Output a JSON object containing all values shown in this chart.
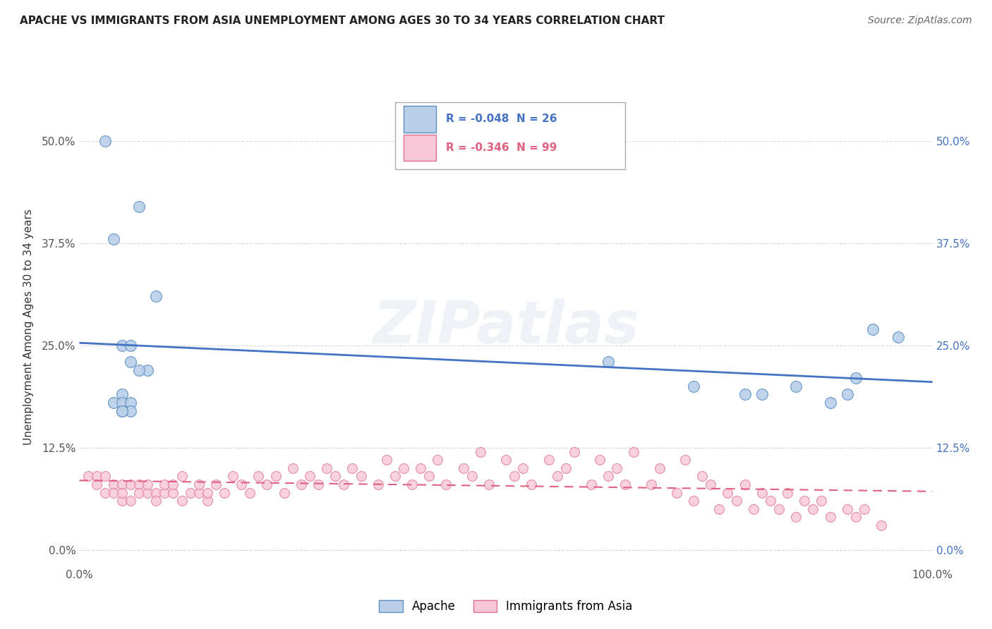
{
  "title": "APACHE VS IMMIGRANTS FROM ASIA UNEMPLOYMENT AMONG AGES 30 TO 34 YEARS CORRELATION CHART",
  "source": "Source: ZipAtlas.com",
  "ylabel": "Unemployment Among Ages 30 to 34 years",
  "xlim": [
    0.0,
    1.0
  ],
  "ylim": [
    -0.02,
    0.565
  ],
  "yticks": [
    0.0,
    0.125,
    0.25,
    0.375,
    0.5
  ],
  "ytick_labels": [
    "0.0%",
    "12.5%",
    "25.0%",
    "37.5%",
    "50.0%"
  ],
  "xticks": [
    0.0,
    1.0
  ],
  "xtick_labels": [
    "0.0%",
    "100.0%"
  ],
  "apache_R": "-0.048",
  "apache_N": "26",
  "asia_R": "-0.346",
  "asia_N": "99",
  "apache_color": "#b8d0e8",
  "apache_edge_color": "#5b8ec4",
  "apache_line_color": "#4472c4",
  "asia_color": "#f8c8d8",
  "asia_edge_color": "#e07090",
  "asia_line_color": "#e06080",
  "background_color": "#ffffff",
  "watermark": "ZIPatlas",
  "grid_color": "#d8d8d8",
  "apache_x": [
    0.03,
    0.07,
    0.09,
    0.04,
    0.05,
    0.06,
    0.08,
    0.06,
    0.07,
    0.05,
    0.04,
    0.05,
    0.06,
    0.06,
    0.05,
    0.05,
    0.62,
    0.72,
    0.78,
    0.8,
    0.84,
    0.88,
    0.9,
    0.91,
    0.93,
    0.96
  ],
  "apache_y": [
    0.5,
    0.42,
    0.31,
    0.38,
    0.25,
    0.25,
    0.22,
    0.23,
    0.22,
    0.19,
    0.18,
    0.18,
    0.18,
    0.17,
    0.17,
    0.17,
    0.23,
    0.2,
    0.19,
    0.19,
    0.2,
    0.18,
    0.19,
    0.21,
    0.27,
    0.26
  ],
  "asia_x": [
    0.01,
    0.02,
    0.02,
    0.03,
    0.03,
    0.04,
    0.04,
    0.05,
    0.05,
    0.05,
    0.06,
    0.06,
    0.07,
    0.07,
    0.08,
    0.08,
    0.09,
    0.09,
    0.1,
    0.1,
    0.11,
    0.11,
    0.12,
    0.12,
    0.13,
    0.14,
    0.14,
    0.15,
    0.15,
    0.16,
    0.17,
    0.18,
    0.19,
    0.2,
    0.21,
    0.22,
    0.23,
    0.24,
    0.25,
    0.26,
    0.27,
    0.28,
    0.29,
    0.3,
    0.31,
    0.32,
    0.33,
    0.35,
    0.36,
    0.37,
    0.38,
    0.39,
    0.4,
    0.41,
    0.42,
    0.43,
    0.45,
    0.46,
    0.47,
    0.48,
    0.5,
    0.51,
    0.52,
    0.53,
    0.55,
    0.56,
    0.57,
    0.58,
    0.6,
    0.61,
    0.62,
    0.63,
    0.64,
    0.65,
    0.67,
    0.68,
    0.7,
    0.71,
    0.72,
    0.73,
    0.74,
    0.75,
    0.76,
    0.77,
    0.78,
    0.79,
    0.8,
    0.81,
    0.82,
    0.83,
    0.84,
    0.85,
    0.86,
    0.87,
    0.88,
    0.9,
    0.91,
    0.92,
    0.94
  ],
  "asia_y": [
    0.09,
    0.09,
    0.08,
    0.09,
    0.07,
    0.08,
    0.07,
    0.08,
    0.06,
    0.07,
    0.08,
    0.06,
    0.08,
    0.07,
    0.07,
    0.08,
    0.07,
    0.06,
    0.07,
    0.08,
    0.07,
    0.08,
    0.06,
    0.09,
    0.07,
    0.07,
    0.08,
    0.06,
    0.07,
    0.08,
    0.07,
    0.09,
    0.08,
    0.07,
    0.09,
    0.08,
    0.09,
    0.07,
    0.1,
    0.08,
    0.09,
    0.08,
    0.1,
    0.09,
    0.08,
    0.1,
    0.09,
    0.08,
    0.11,
    0.09,
    0.1,
    0.08,
    0.1,
    0.09,
    0.11,
    0.08,
    0.1,
    0.09,
    0.12,
    0.08,
    0.11,
    0.09,
    0.1,
    0.08,
    0.11,
    0.09,
    0.1,
    0.12,
    0.08,
    0.11,
    0.09,
    0.1,
    0.08,
    0.12,
    0.08,
    0.1,
    0.07,
    0.11,
    0.06,
    0.09,
    0.08,
    0.05,
    0.07,
    0.06,
    0.08,
    0.05,
    0.07,
    0.06,
    0.05,
    0.07,
    0.04,
    0.06,
    0.05,
    0.06,
    0.04,
    0.05,
    0.04,
    0.05,
    0.03
  ]
}
